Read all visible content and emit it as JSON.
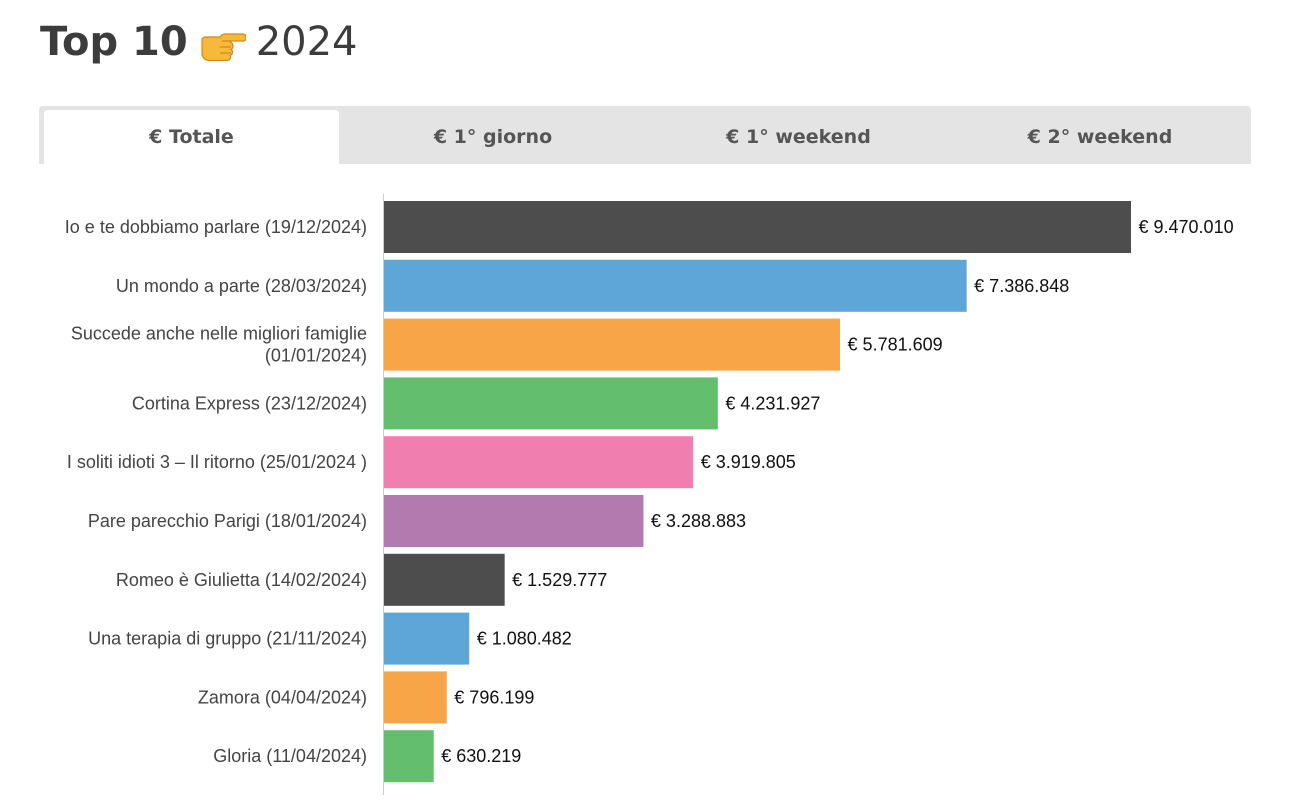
{
  "header": {
    "title_bold": "Top 10",
    "title_icon": "pointing-right-hand-icon",
    "title_year": "2024"
  },
  "tabs": [
    {
      "label": "€ Totale",
      "active": true
    },
    {
      "label": "€ 1° giorno",
      "active": false
    },
    {
      "label": "€ 1° weekend",
      "active": false
    },
    {
      "label": "€ 2° weekend",
      "active": false
    }
  ],
  "chart_data": {
    "type": "bar",
    "orientation": "horizontal",
    "categories": [
      [
        "Io e te dobbiamo parlare (19/12/2024)"
      ],
      [
        "Un mondo a parte (28/03/2024)"
      ],
      [
        "Succede anche nelle migliori famiglie",
        "(01/01/2024)"
      ],
      [
        "Cortina Express (23/12/2024)"
      ],
      [
        "I soliti idioti 3 – Il ritorno (25/01/2024 )"
      ],
      [
        "Pare parecchio Parigi (18/01/2024)"
      ],
      [
        "Romeo è Giulietta (14/02/2024)"
      ],
      [
        "Una terapia di gruppo (21/11/2024)"
      ],
      [
        "Zamora (04/04/2024)"
      ],
      [
        "Gloria (11/04/2024)"
      ]
    ],
    "values": [
      9470010,
      7386848,
      5781609,
      4231927,
      3919805,
      3288883,
      1529777,
      1080482,
      796199,
      630219
    ],
    "value_labels": [
      "€ 9.470.010",
      "€ 7.386.848",
      "€ 5.781.609",
      "€ 4.231.927",
      "€ 3.919.805",
      "€ 3.288.883",
      "€ 1.529.777",
      "€ 1.080.482",
      "€ 796.199",
      "€ 630.219"
    ],
    "colors": [
      "#4d4d4d",
      "#5ea5d8",
      "#f8a547",
      "#63bf6d",
      "#f07fb0",
      "#b27aaf",
      "#4d4d4d",
      "#5ea5d8",
      "#f8a547",
      "#63bf6d"
    ],
    "xlim": [
      0,
      9470010
    ],
    "grid": false,
    "legend": "none"
  }
}
